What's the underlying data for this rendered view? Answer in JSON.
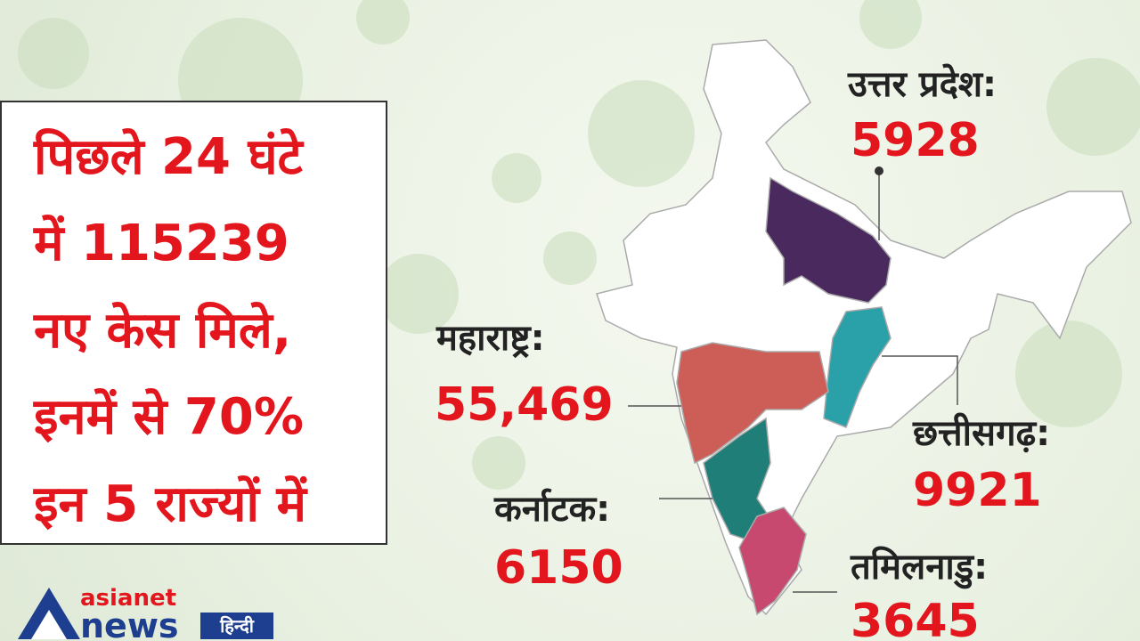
{
  "headline": {
    "lines": [
      "पिछले 24 घंटे",
      "में 115239",
      "नए केस मिले,",
      "इनमें से 70%",
      "इन 5 राज्यों में"
    ]
  },
  "states": [
    {
      "name": "उत्तर प्रदेश:",
      "cases": "5928"
    },
    {
      "name": "महाराष्ट्र:",
      "cases": "55,469"
    },
    {
      "name": "छत्तीसगढ़:",
      "cases": "9921"
    },
    {
      "name": "कर्नाटक:",
      "cases": "6150"
    },
    {
      "name": "तमिलनाडु:",
      "cases": "3645"
    }
  ],
  "logo": {
    "brand": "asianet",
    "product": "news",
    "language": "हिन्दी"
  }
}
